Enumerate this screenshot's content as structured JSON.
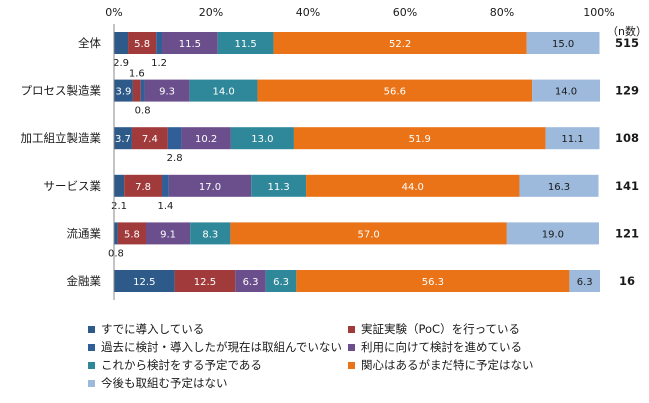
{
  "chart_data": {
    "type": "bar",
    "orientation": "horizontal",
    "stacked": true,
    "percent": true,
    "categories": [
      "全体",
      "プロセス製造業",
      "加工組立製造業",
      "サービス業",
      "流通業",
      "金融業"
    ],
    "n_label": "（n数）",
    "n_values": [
      "515",
      "129",
      "108",
      "141",
      "121",
      "16"
    ],
    "xlim": [
      0,
      100
    ],
    "xticks": [
      "0%",
      "20%",
      "40%",
      "60%",
      "80%",
      "100%"
    ],
    "series": [
      {
        "name": "すでに導入している",
        "color": "#2e5a8a",
        "values": [
          2.9,
          3.9,
          3.7,
          2.1,
          0.8,
          12.5
        ]
      },
      {
        "name": "実証実験（PoC）を行っている",
        "color": "#a13a3a",
        "values": [
          5.8,
          1.6,
          7.4,
          7.8,
          5.8,
          12.5
        ]
      },
      {
        "name": "過去に検討・導入したが現在は取組んでいない",
        "color": "#2f5f96",
        "values": [
          1.2,
          0.8,
          2.8,
          1.4,
          0.0,
          0.0
        ]
      },
      {
        "name": "利用に向けて検討を進めている",
        "color": "#6a4f8c",
        "values": [
          11.5,
          9.3,
          10.2,
          17.0,
          9.1,
          6.3
        ]
      },
      {
        "name": "これから検討をする予定である",
        "color": "#2f8899",
        "values": [
          11.5,
          14.0,
          13.0,
          11.3,
          8.3,
          6.3
        ]
      },
      {
        "name": "関心はあるがまだ特に予定はない",
        "color": "#ea7317",
        "values": [
          52.2,
          56.6,
          51.9,
          44.0,
          57.0,
          56.3
        ]
      },
      {
        "name": "今後も取組む予定はない",
        "color": "#9db9dc",
        "values": [
          15.0,
          14.0,
          11.1,
          16.3,
          19.0,
          6.3
        ]
      }
    ],
    "data_labels": [
      [
        {
          "text": "2.9",
          "series": 0,
          "pos": "below"
        },
        {
          "text": "5.8",
          "series": 1,
          "pos": "inside"
        },
        {
          "text": "1.2",
          "series": 2,
          "pos": "below"
        },
        {
          "text": "11.5",
          "series": 3,
          "pos": "inside"
        },
        {
          "text": "11.5",
          "series": 4,
          "pos": "inside"
        },
        {
          "text": "52.2",
          "series": 5,
          "pos": "inside"
        },
        {
          "text": "15.0",
          "series": 6,
          "pos": "inside"
        }
      ],
      [
        {
          "text": "3.9",
          "series": 0,
          "pos": "inside"
        },
        {
          "text": "1.6",
          "series": 1,
          "pos": "above"
        },
        {
          "text": "0.8",
          "series": 2,
          "pos": "below"
        },
        {
          "text": "9.3",
          "series": 3,
          "pos": "inside"
        },
        {
          "text": "14.0",
          "series": 4,
          "pos": "inside"
        },
        {
          "text": "56.6",
          "series": 5,
          "pos": "inside"
        },
        {
          "text": "14.0",
          "series": 6,
          "pos": "inside"
        }
      ],
      [
        {
          "text": "3.7",
          "series": 0,
          "pos": "inside"
        },
        {
          "text": "7.4",
          "series": 1,
          "pos": "inside"
        },
        {
          "text": "2.8",
          "series": 2,
          "pos": "below"
        },
        {
          "text": "10.2",
          "series": 3,
          "pos": "inside"
        },
        {
          "text": "13.0",
          "series": 4,
          "pos": "inside"
        },
        {
          "text": "51.9",
          "series": 5,
          "pos": "inside"
        },
        {
          "text": "11.1",
          "series": 6,
          "pos": "inside"
        }
      ],
      [
        {
          "text": "2.1",
          "series": 0,
          "pos": "below"
        },
        {
          "text": "7.8",
          "series": 1,
          "pos": "inside"
        },
        {
          "text": "1.4",
          "series": 2,
          "pos": "below"
        },
        {
          "text": "17.0",
          "series": 3,
          "pos": "inside"
        },
        {
          "text": "11.3",
          "series": 4,
          "pos": "inside"
        },
        {
          "text": "44.0",
          "series": 5,
          "pos": "inside"
        },
        {
          "text": "16.3",
          "series": 6,
          "pos": "inside"
        }
      ],
      [
        {
          "text": "0.8",
          "series": 0,
          "pos": "below"
        },
        {
          "text": "5.8",
          "series": 1,
          "pos": "inside"
        },
        {
          "text": "9.1",
          "series": 3,
          "pos": "inside"
        },
        {
          "text": "8.3",
          "series": 4,
          "pos": "inside"
        },
        {
          "text": "57.0",
          "series": 5,
          "pos": "inside"
        },
        {
          "text": "19.0",
          "series": 6,
          "pos": "inside"
        }
      ],
      [
        {
          "text": "12.5",
          "series": 0,
          "pos": "inside"
        },
        {
          "text": "12.5",
          "series": 1,
          "pos": "inside"
        },
        {
          "text": "6.3",
          "series": 3,
          "pos": "inside"
        },
        {
          "text": "6.3",
          "series": 4,
          "pos": "inside"
        },
        {
          "text": "56.3",
          "series": 5,
          "pos": "inside"
        },
        {
          "text": "6.3",
          "series": 6,
          "pos": "inside"
        }
      ]
    ],
    "legend_position": "bottom",
    "grid": false
  }
}
